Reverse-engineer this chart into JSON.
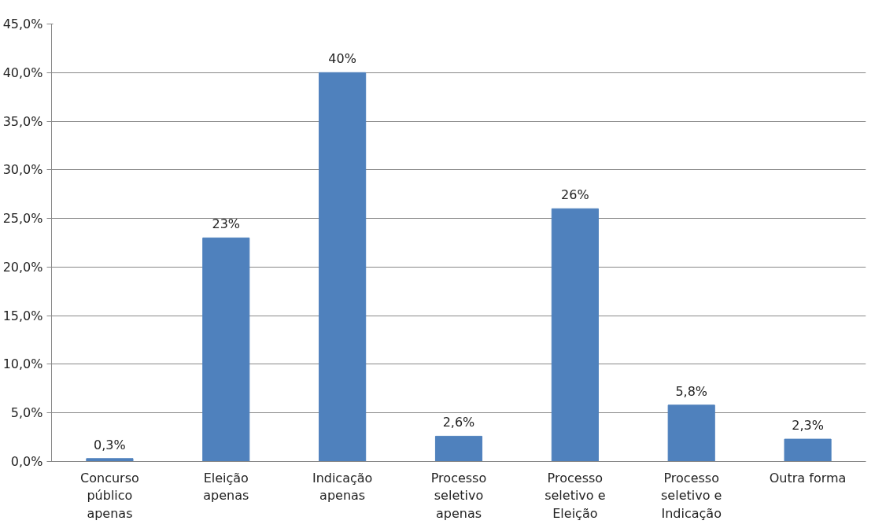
{
  "chart_data": {
    "type": "bar",
    "categories": [
      "Concurso público apenas",
      "Eleição apenas",
      "Indicação apenas",
      "Processo seletivo apenas",
      "Processo seletivo e Eleição",
      "Processo seletivo e Indicação",
      "Outra forma"
    ],
    "values": [
      0.3,
      23,
      40,
      2.6,
      26,
      5.8,
      2.3
    ],
    "value_labels": [
      "0,3%",
      "23%",
      "40%",
      "2,6%",
      "26%",
      "5,8%",
      "2,3%"
    ],
    "color": "#4f81bd",
    "ylim": [
      0,
      45
    ],
    "yticks": [
      {
        "value": 0,
        "label": "0,0%"
      },
      {
        "value": 5,
        "label": "5,0%"
      },
      {
        "value": 10,
        "label": "10,0%"
      },
      {
        "value": 15,
        "label": "15,0%"
      },
      {
        "value": 20,
        "label": "20,0%"
      },
      {
        "value": 25,
        "label": "25,0%"
      },
      {
        "value": 30,
        "label": "30,0%"
      },
      {
        "value": 35,
        "label": "35,0%"
      },
      {
        "value": 40,
        "label": "40,0%"
      },
      {
        "value": 45,
        "label": "45,0%"
      }
    ],
    "grid": "y"
  }
}
